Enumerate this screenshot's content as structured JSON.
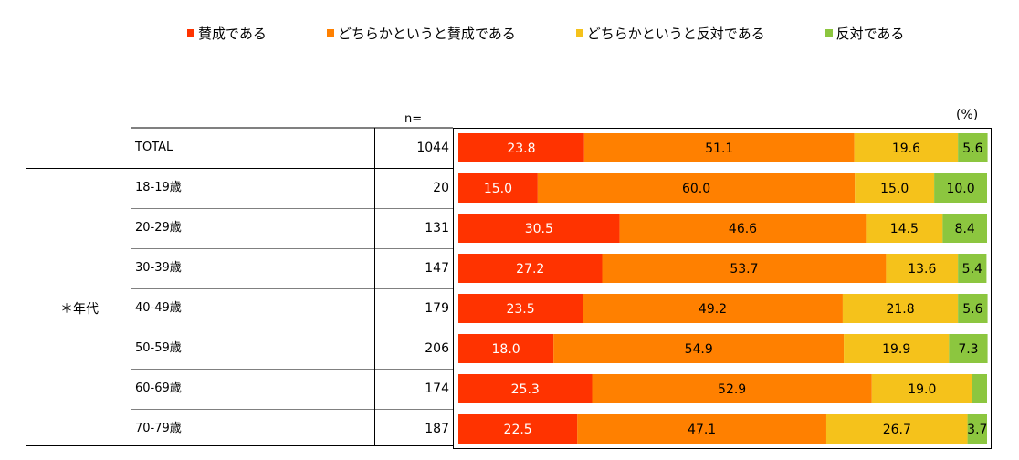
{
  "chart_data": {
    "type": "bar",
    "orientation": "horizontal",
    "stacked": true,
    "unit_label": "(%)",
    "n_header": "n=",
    "group_label": "＊年代",
    "legend": [
      {
        "label": "賛成である",
        "color": "#ff3300"
      },
      {
        "label": "どちらかというと賛成である",
        "color": "#ff8000"
      },
      {
        "label": "どちらかというと反対である",
        "color": "#f5c21b"
      },
      {
        "label": "反対である",
        "color": "#8cc63f"
      }
    ],
    "categories": [
      "TOTAL",
      "18-19歳",
      "20-29歳",
      "30-39歳",
      "40-49歳",
      "50-59歳",
      "60-69歳",
      "70-79歳"
    ],
    "n": [
      "1044",
      "20",
      "131",
      "147",
      "179",
      "206",
      "174",
      "187"
    ],
    "series": [
      {
        "name": "賛成である",
        "values": [
          23.8,
          15.0,
          30.5,
          27.2,
          23.5,
          18.0,
          25.3,
          22.5
        ],
        "labels": [
          "23.8",
          "15.0",
          "30.5",
          "27.2",
          "23.5",
          "18.0",
          "25.3",
          "22.5"
        ]
      },
      {
        "name": "どちらかというと賛成である",
        "values": [
          51.1,
          60.0,
          46.6,
          53.7,
          49.2,
          54.9,
          52.9,
          47.1
        ],
        "labels": [
          "51.1",
          "60.0",
          "46.6",
          "53.7",
          "49.2",
          "54.9",
          "52.9",
          "47.1"
        ]
      },
      {
        "name": "どちらかというと反対である",
        "values": [
          19.6,
          15.0,
          14.5,
          13.6,
          21.8,
          19.9,
          19.0,
          26.7
        ],
        "labels": [
          "19.6",
          "15.0",
          "14.5",
          "13.6",
          "21.8",
          "19.9",
          "19.0",
          "26.7"
        ]
      },
      {
        "name": "反対である",
        "values": [
          5.6,
          10.0,
          8.4,
          5.4,
          5.6,
          7.3,
          2.8,
          3.7
        ],
        "labels": [
          "5.6",
          "10.0",
          "8.4",
          "5.4",
          "5.6",
          "7.3",
          "",
          "3.7"
        ]
      }
    ],
    "xlim": [
      0,
      100
    ]
  }
}
